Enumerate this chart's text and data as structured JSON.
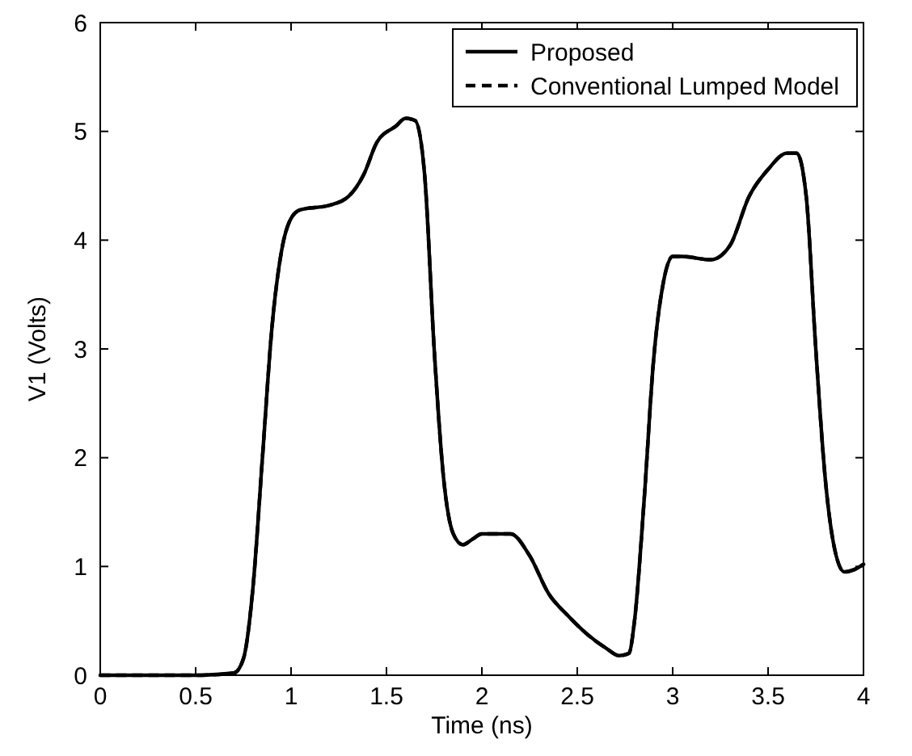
{
  "chart_data": {
    "type": "line",
    "xlabel": "Time (ns)",
    "ylabel": "V1 (Volts)",
    "x": [
      0,
      0.5,
      0.7,
      0.75,
      0.8,
      0.85,
      0.9,
      0.95,
      1.0,
      1.05,
      1.2,
      1.3,
      1.38,
      1.45,
      1.55,
      1.6,
      1.65,
      1.7,
      1.75,
      1.8,
      1.85,
      1.9,
      1.95,
      2.0,
      2.15,
      2.25,
      2.35,
      2.45,
      2.55,
      2.65,
      2.72,
      2.77,
      2.8,
      2.85,
      2.9,
      2.95,
      3.0,
      3.05,
      3.2,
      3.3,
      3.4,
      3.5,
      3.6,
      3.65,
      3.7,
      3.75,
      3.8,
      3.85,
      3.9,
      3.95,
      4.0
    ],
    "series": [
      {
        "name": "Proposed",
        "color": "#000000",
        "line_style": "solid",
        "values": [
          0,
          0,
          0.02,
          0.15,
          0.8,
          2.0,
          3.2,
          3.9,
          4.2,
          4.28,
          4.32,
          4.4,
          4.6,
          4.9,
          5.05,
          5.12,
          5.1,
          4.6,
          3.0,
          1.8,
          1.3,
          1.2,
          1.25,
          1.3,
          1.3,
          1.1,
          0.75,
          0.55,
          0.38,
          0.25,
          0.18,
          0.2,
          0.5,
          1.6,
          2.9,
          3.6,
          3.85,
          3.85,
          3.82,
          3.95,
          4.4,
          4.65,
          4.8,
          4.8,
          4.4,
          3.0,
          1.8,
          1.15,
          0.95,
          0.97,
          1.02
        ]
      },
      {
        "name": "Conventional Lumped Model",
        "color": "#000000",
        "line_style": "dashed",
        "values": [
          0,
          0,
          0.02,
          0.15,
          0.8,
          2.0,
          3.2,
          3.9,
          4.2,
          4.28,
          4.32,
          4.4,
          4.6,
          4.9,
          5.05,
          5.12,
          5.1,
          4.6,
          3.0,
          1.8,
          1.3,
          1.2,
          1.25,
          1.3,
          1.3,
          1.1,
          0.75,
          0.55,
          0.38,
          0.25,
          0.18,
          0.2,
          0.5,
          1.6,
          2.9,
          3.6,
          3.85,
          3.85,
          3.82,
          3.95,
          4.4,
          4.65,
          4.8,
          4.8,
          4.4,
          3.0,
          1.8,
          1.15,
          0.95,
          0.97,
          1.02
        ]
      }
    ],
    "xlim": [
      0,
      4
    ],
    "xticks": [
      0,
      0.5,
      1,
      1.5,
      2,
      2.5,
      3,
      3.5,
      4
    ],
    "ylim": [
      0,
      6
    ],
    "yticks": [
      0,
      1,
      2,
      3,
      4,
      5,
      6
    ],
    "grid": false,
    "legend": "top right"
  }
}
